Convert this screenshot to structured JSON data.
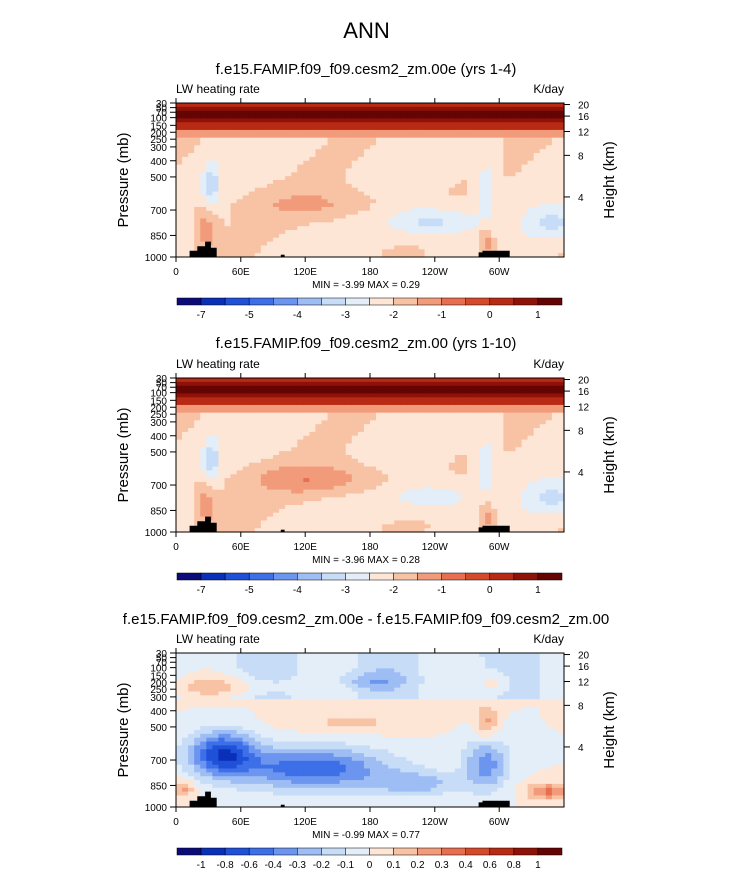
{
  "page_title": "ANN",
  "colors": {
    "panel_scale": [
      "#0b0b7a",
      "#0a2fb8",
      "#1f50d8",
      "#3d6fe8",
      "#6c95ef",
      "#9dbdf4",
      "#c6dcf7",
      "#e3eef8",
      "#fde6d6",
      "#f8c3a5",
      "#f29b7a",
      "#e86e50",
      "#d64a2c",
      "#b92a14",
      "#8f1208",
      "#650503"
    ],
    "land": "#000000"
  },
  "chart_data": [
    {
      "type": "heatmap",
      "title": "f.e15.FAMIP.f09_f09.cesm2_zm.00e (yrs 1-4)",
      "left_label": "LW heating rate",
      "right_label": "K/day",
      "ylabel": "Pressure (mb)",
      "ylabel_right": "Height (km)",
      "xticks": [
        "0",
        "60E",
        "120E",
        "180",
        "120W",
        "60W"
      ],
      "yticks": [
        "30",
        "50",
        "70",
        "100",
        "150",
        "200",
        "250",
        "300",
        "400",
        "500",
        "700",
        "850",
        "1000"
      ],
      "height_ticks": [
        "20",
        "16",
        "12",
        "8",
        "4"
      ],
      "stats": "MIN =  -3.99  MAX =   0.29",
      "colorbar_labels": [
        "-7",
        "-5",
        "-4",
        "-3",
        "-2",
        "-1",
        "0",
        "1"
      ],
      "value_range": [
        -3.99,
        0.29
      ],
      "features": {
        "cold_pool_strength": 0.65,
        "mid_warm_strength": 0.55
      }
    },
    {
      "type": "heatmap",
      "title": "f.e15.FAMIP.f09_f09.cesm2_zm.00 (yrs 1-10)",
      "left_label": "LW heating rate",
      "right_label": "K/day",
      "ylabel": "Pressure (mb)",
      "ylabel_right": "Height (km)",
      "xticks": [
        "0",
        "60E",
        "120E",
        "180",
        "120W",
        "60W"
      ],
      "yticks": [
        "30",
        "50",
        "70",
        "100",
        "150",
        "200",
        "250",
        "300",
        "400",
        "500",
        "700",
        "850",
        "1000"
      ],
      "height_ticks": [
        "20",
        "16",
        "12",
        "8",
        "4"
      ],
      "stats": "MIN =  -3.96  MAX =   0.28",
      "colorbar_labels": [
        "-7",
        "-5",
        "-4",
        "-3",
        "-2",
        "-1",
        "0",
        "1"
      ],
      "value_range": [
        -3.96,
        0.28
      ],
      "features": {
        "cold_pool_strength": 0.45,
        "mid_warm_strength": 0.85
      }
    },
    {
      "type": "heatmap",
      "title": "f.e15.FAMIP.f09_f09.cesm2_zm.00e - f.e15.FAMIP.f09_f09.cesm2_zm.00",
      "left_label": "LW heating rate",
      "right_label": "K/day",
      "ylabel": "Pressure (mb)",
      "ylabel_right": "Height (km)",
      "xticks": [
        "0",
        "60E",
        "120E",
        "180",
        "120W",
        "60W"
      ],
      "yticks": [
        "30",
        "50",
        "70",
        "100",
        "150",
        "200",
        "250",
        "300",
        "400",
        "500",
        "700",
        "850",
        "1000"
      ],
      "height_ticks": [
        "20",
        "16",
        "12",
        "8",
        "4"
      ],
      "stats": "MIN =  -0.99  MAX =   0.77",
      "colorbar_labels": [
        "-1",
        "-0.8",
        "-0.6",
        "-0.4",
        "-0.3",
        "-0.2",
        "-0.1",
        "0",
        "0.1",
        "0.2",
        "0.3",
        "0.4",
        "0.6",
        "0.8",
        "1"
      ],
      "value_range": [
        -0.99,
        0.77
      ],
      "features": {
        "cold_pool_strength": 1.0,
        "mid_warm_strength": 0.6
      }
    }
  ]
}
